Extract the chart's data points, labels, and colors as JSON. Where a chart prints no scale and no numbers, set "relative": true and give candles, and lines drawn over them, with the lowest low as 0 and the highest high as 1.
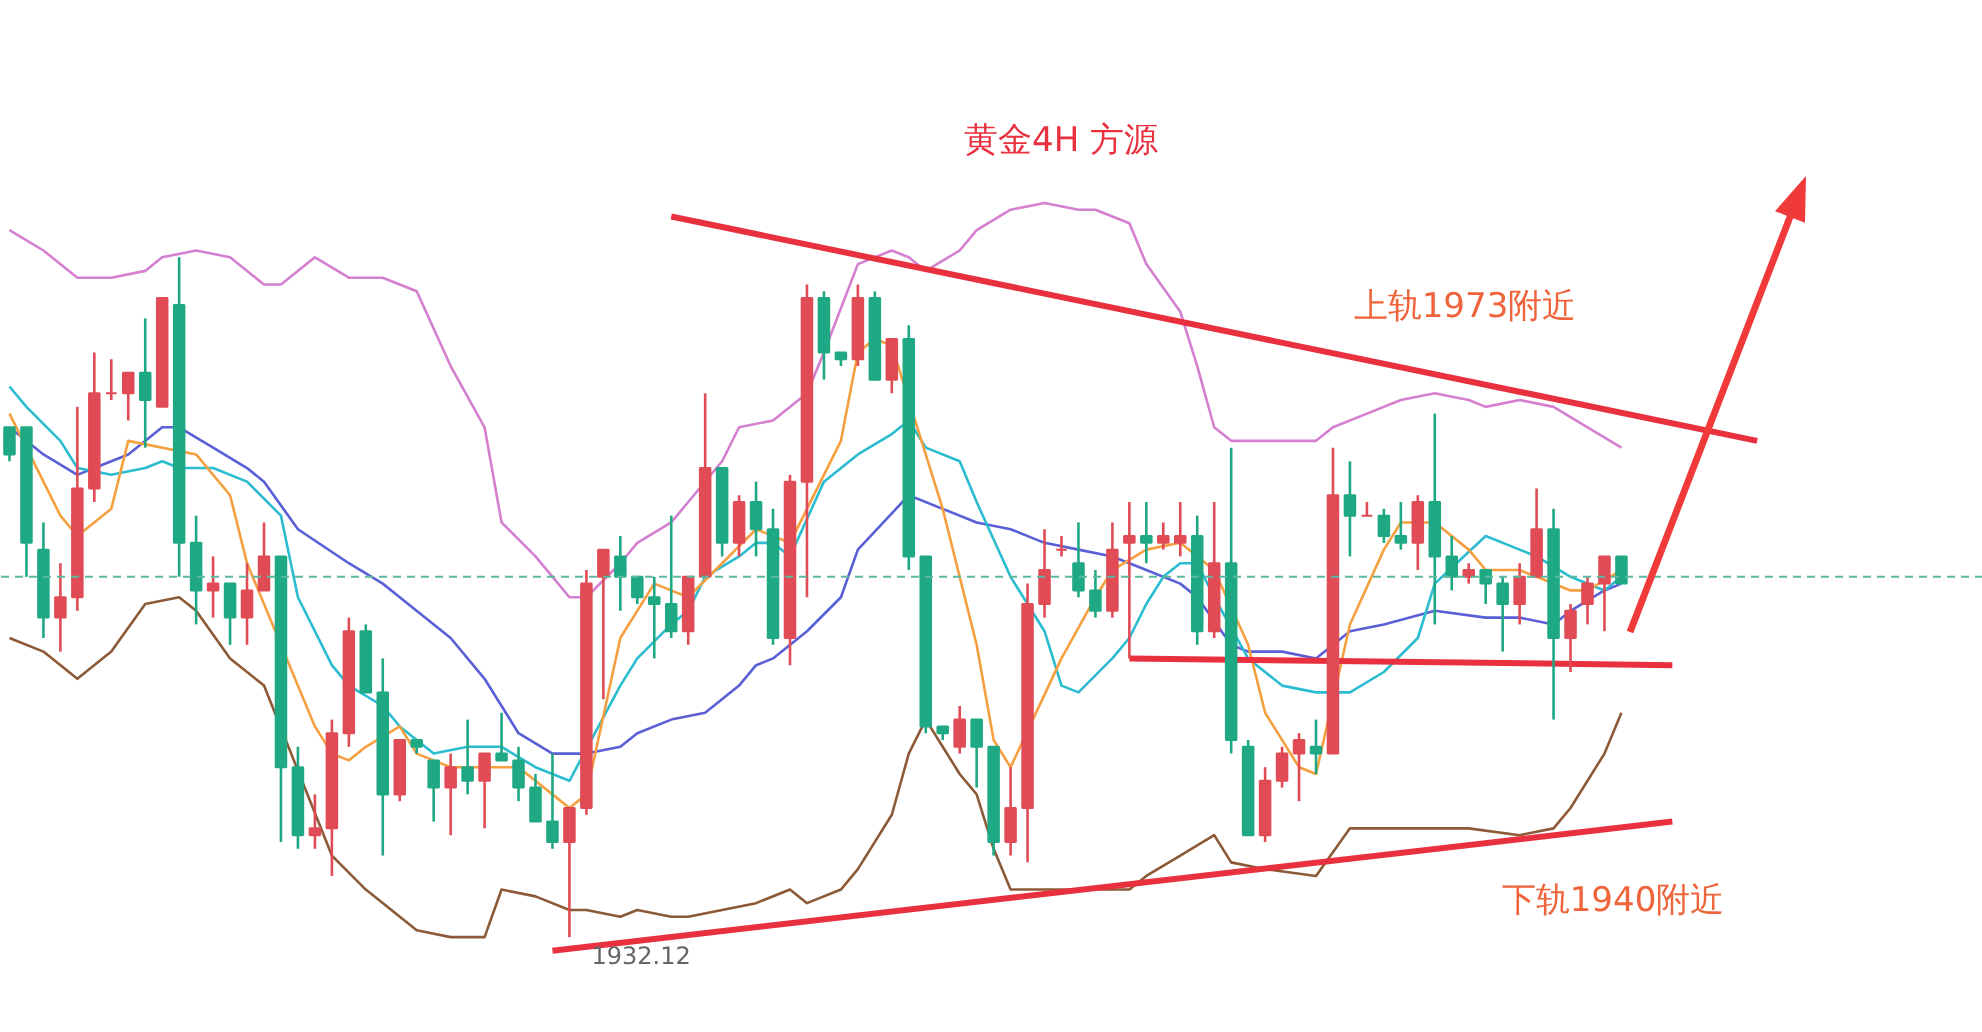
{
  "chart_data": {
    "type": "candlestick",
    "title": "黄金4H 方源",
    "relative": true,
    "categories": [
      null,
      null,
      null,
      null,
      null,
      null,
      null,
      null,
      null,
      null,
      null,
      null,
      null,
      null,
      null,
      null,
      null,
      null,
      null,
      null,
      null,
      null,
      null,
      null,
      null,
      null,
      null,
      null,
      null,
      null,
      null,
      null,
      null,
      null,
      null,
      null,
      null,
      null,
      null,
      null,
      null,
      null,
      null,
      null,
      null,
      null,
      null,
      null,
      null,
      null,
      null,
      null,
      null,
      null,
      null,
      null,
      null,
      null,
      null,
      null,
      null,
      null,
      null,
      null,
      null,
      null,
      null,
      null,
      null,
      null,
      null,
      null,
      null,
      null,
      null,
      null,
      null,
      null,
      null,
      null,
      null,
      null,
      null,
      null,
      null,
      null,
      null,
      null,
      null,
      null,
      null,
      null,
      null,
      null,
      null,
      null,
      null,
      null,
      null,
      null,
      null,
      null,
      null,
      null,
      null,
      null,
      null
    ],
    "ohlc": [
      [
        0.75,
        0.75,
        0.7,
        0.71
      ],
      [
        0.75,
        0.75,
        0.53,
        0.58
      ],
      [
        0.57,
        0.61,
        0.44,
        0.47
      ],
      [
        0.47,
        0.55,
        0.42,
        0.5
      ],
      [
        0.5,
        0.78,
        0.48,
        0.66
      ],
      [
        0.66,
        0.86,
        0.64,
        0.8
      ],
      [
        0.8,
        0.85,
        0.79,
        0.8
      ],
      [
        0.8,
        0.83,
        0.76,
        0.83
      ],
      [
        0.83,
        0.91,
        0.72,
        0.79
      ],
      [
        0.78,
        0.94,
        0.78,
        0.94
      ],
      [
        0.93,
        1.0,
        0.53,
        0.58
      ],
      [
        0.58,
        0.62,
        0.46,
        0.51
      ],
      [
        0.51,
        0.56,
        0.47,
        0.52
      ],
      [
        0.52,
        0.52,
        0.43,
        0.47
      ],
      [
        0.47,
        0.55,
        0.43,
        0.51
      ],
      [
        0.51,
        0.61,
        0.51,
        0.56
      ],
      [
        0.56,
        0.56,
        0.14,
        0.25
      ],
      [
        0.25,
        0.28,
        0.13,
        0.15
      ],
      [
        0.15,
        0.21,
        0.13,
        0.16
      ],
      [
        0.16,
        0.32,
        0.09,
        0.3
      ],
      [
        0.3,
        0.47,
        0.28,
        0.45
      ],
      [
        0.45,
        0.46,
        0.36,
        0.36
      ],
      [
        0.36,
        0.41,
        0.12,
        0.21
      ],
      [
        0.21,
        0.29,
        0.2,
        0.29
      ],
      [
        0.29,
        0.29,
        0.27,
        0.28
      ],
      [
        0.26,
        0.26,
        0.17,
        0.22
      ],
      [
        0.22,
        0.27,
        0.15,
        0.25
      ],
      [
        0.25,
        0.32,
        0.21,
        0.23
      ],
      [
        0.23,
        0.27,
        0.16,
        0.27
      ],
      [
        0.27,
        0.33,
        0.26,
        0.26
      ],
      [
        0.26,
        0.28,
        0.2,
        0.22
      ],
      [
        0.22,
        0.24,
        0.17,
        0.17
      ],
      [
        0.17,
        0.27,
        0.13,
        0.14
      ],
      [
        0.14,
        0.19,
        0.0,
        0.19
      ],
      [
        0.19,
        0.54,
        0.18,
        0.52
      ],
      [
        0.53,
        0.57,
        0.35,
        0.57
      ],
      [
        0.56,
        0.59,
        0.48,
        0.53
      ],
      [
        0.53,
        0.53,
        0.49,
        0.5
      ],
      [
        0.5,
        0.53,
        0.41,
        0.49
      ],
      [
        0.49,
        0.62,
        0.44,
        0.45
      ],
      [
        0.45,
        0.53,
        0.43,
        0.53
      ],
      [
        0.53,
        0.8,
        0.53,
        0.69
      ],
      [
        0.69,
        0.69,
        0.56,
        0.58
      ],
      [
        0.58,
        0.65,
        0.56,
        0.64
      ],
      [
        0.64,
        0.67,
        0.56,
        0.6
      ],
      [
        0.6,
        0.63,
        0.43,
        0.44
      ],
      [
        0.44,
        0.68,
        0.4,
        0.67
      ],
      [
        0.67,
        0.96,
        0.5,
        0.94
      ],
      [
        0.94,
        0.95,
        0.82,
        0.86
      ],
      [
        0.86,
        0.86,
        0.84,
        0.85
      ],
      [
        0.85,
        0.96,
        0.84,
        0.94
      ],
      [
        0.94,
        0.95,
        0.82,
        0.82
      ],
      [
        0.82,
        0.88,
        0.8,
        0.88
      ],
      [
        0.88,
        0.9,
        0.54,
        0.56
      ],
      [
        0.56,
        0.56,
        0.3,
        0.31
      ],
      [
        0.31,
        0.31,
        0.29,
        0.3
      ],
      [
        0.28,
        0.34,
        0.27,
        0.32
      ],
      [
        0.32,
        0.32,
        0.22,
        0.28
      ],
      [
        0.28,
        0.28,
        0.12,
        0.14
      ],
      [
        0.14,
        0.25,
        0.12,
        0.19
      ],
      [
        0.19,
        0.52,
        0.11,
        0.49
      ],
      [
        0.49,
        0.6,
        0.47,
        0.54
      ],
      [
        0.57,
        0.59,
        0.56,
        0.57
      ],
      [
        0.55,
        0.61,
        0.5,
        0.51
      ],
      [
        0.51,
        0.54,
        0.47,
        0.48
      ],
      [
        0.48,
        0.61,
        0.47,
        0.57
      ],
      [
        0.58,
        0.64,
        0.41,
        0.59
      ],
      [
        0.59,
        0.64,
        0.55,
        0.58
      ],
      [
        0.58,
        0.61,
        0.57,
        0.59
      ],
      [
        0.58,
        0.64,
        0.56,
        0.59
      ],
      [
        0.59,
        0.62,
        0.43,
        0.45
      ],
      [
        0.45,
        0.64,
        0.44,
        0.55
      ],
      [
        0.55,
        0.72,
        0.27,
        0.29
      ],
      [
        0.28,
        0.29,
        0.15,
        0.15
      ],
      [
        0.15,
        0.25,
        0.14,
        0.23
      ],
      [
        0.23,
        0.28,
        0.22,
        0.27
      ],
      [
        0.27,
        0.3,
        0.2,
        0.29
      ],
      [
        0.28,
        0.32,
        0.24,
        0.27
      ],
      [
        0.27,
        0.72,
        0.27,
        0.65
      ],
      [
        0.65,
        0.7,
        0.56,
        0.62
      ],
      [
        0.62,
        0.64,
        0.62,
        0.62
      ],
      [
        0.62,
        0.63,
        0.58,
        0.59
      ],
      [
        0.59,
        0.64,
        0.57,
        0.58
      ],
      [
        0.58,
        0.65,
        0.54,
        0.64
      ],
      [
        0.64,
        0.77,
        0.46,
        0.56
      ],
      [
        0.56,
        0.59,
        0.51,
        0.53
      ],
      [
        0.53,
        0.55,
        0.52,
        0.54
      ],
      [
        0.54,
        0.54,
        0.49,
        0.52
      ],
      [
        0.52,
        0.53,
        0.42,
        0.49
      ],
      [
        0.49,
        0.55,
        0.46,
        0.53
      ],
      [
        0.53,
        0.66,
        0.53,
        0.6
      ],
      [
        0.6,
        0.63,
        0.32,
        0.44
      ],
      [
        0.44,
        0.49,
        0.39,
        0.48
      ],
      [
        0.49,
        0.53,
        0.46,
        0.52
      ],
      [
        0.52,
        0.56,
        0.45,
        0.56
      ],
      [
        0.56,
        0.56,
        0.52,
        0.52
      ],
      null,
      null,
      null,
      null,
      null,
      null,
      null,
      null,
      null,
      null,
      null
    ],
    "colors": [
      "#1fa884",
      "#1fa884",
      "#1fa884",
      "#e04b55",
      "#e04b55",
      "#e04b55",
      "#e04b55",
      "#e04b55",
      "#1fa884",
      "#e04b55",
      "#1fa884",
      "#1fa884",
      "#e04b55",
      "#1fa884",
      "#e04b55",
      "#e04b55",
      "#1fa884",
      "#1fa884",
      "#e04b55",
      "#e04b55",
      "#e04b55",
      "#1fa884",
      "#1fa884",
      "#e04b55",
      "#1fa884",
      "#1fa884",
      "#e04b55",
      "#1fa884",
      "#e04b55",
      "#1fa884",
      "#1fa884",
      "#1fa884",
      "#1fa884",
      "#e04b55",
      "#e04b55",
      "#e04b55",
      "#1fa884",
      "#1fa884",
      "#1fa884",
      "#1fa884",
      "#e04b55",
      "#e04b55",
      "#1fa884",
      "#e04b55",
      "#1fa884",
      "#1fa884",
      "#e04b55",
      "#e04b55",
      "#1fa884",
      "#1fa884",
      "#e04b55",
      "#1fa884",
      "#e04b55",
      "#1fa884",
      "#1fa884",
      "#1fa884",
      "#e04b55",
      "#1fa884",
      "#1fa884",
      "#e04b55",
      "#e04b55",
      "#e04b55",
      "#e04b55",
      "#1fa884",
      "#1fa884",
      "#e04b55",
      "#e04b55",
      "#1fa884",
      "#e04b55",
      "#e04b55",
      "#1fa884",
      "#e04b55",
      "#1fa884",
      "#1fa884",
      "#e04b55",
      "#e04b55",
      "#e04b55",
      "#1fa884",
      "#e04b55",
      "#1fa884",
      "#e04b55",
      "#1fa884",
      "#1fa884",
      "#e04b55",
      "#1fa884",
      "#1fa884",
      "#e04b55",
      "#1fa884",
      "#1fa884",
      "#e04b55",
      "#e04b55",
      "#1fa884",
      "#e04b55",
      "#e04b55",
      "#e04b55",
      "#1fa884",
      null,
      null,
      null,
      null,
      null,
      null,
      null,
      null,
      null,
      null,
      null
    ],
    "series": [
      {
        "type": "line",
        "color": "#d47fd0",
        "values": [
          1.04,
          null,
          1.01,
          null,
          0.97,
          null,
          0.97,
          null,
          0.98,
          1.0,
          null,
          1.01,
          null,
          1.0,
          null,
          0.96,
          0.96,
          null,
          1.0,
          null,
          0.97,
          null,
          0.97,
          null,
          0.95,
          null,
          0.84,
          null,
          0.75,
          0.61,
          null,
          0.56,
          null,
          0.5,
          0.5,
          null,
          0.55,
          0.58,
          null,
          0.61,
          0.64,
          null,
          0.7,
          0.75,
          null,
          0.76,
          null,
          0.8,
          0.86,
          null,
          0.99,
          null,
          1.01,
          1.0,
          0.98,
          null,
          1.01,
          1.04,
          null,
          1.07,
          null,
          1.08,
          null,
          1.07,
          1.07,
          null,
          1.05,
          0.99,
          null,
          0.92,
          0.84,
          0.75,
          0.73,
          null,
          0.73,
          null,
          null,
          0.73,
          0.75,
          null,
          0.77,
          null,
          0.79,
          null,
          0.8,
          null,
          0.79,
          0.78,
          null,
          0.79,
          null,
          0.78,
          null,
          0.75,
          null,
          0.72,
          null,
          null,
          null,
          null,
          null,
          null,
          null,
          null,
          null,
          null,
          null
        ]
      },
      {
        "type": "line",
        "color": "#5a5fd6",
        "values": [
          0.75,
          null,
          0.71,
          null,
          0.68,
          0.69,
          null,
          0.71,
          null,
          0.75,
          0.75,
          null,
          0.72,
          null,
          0.69,
          0.67,
          null,
          0.6,
          null,
          null,
          0.55,
          null,
          0.52,
          0.5,
          null,
          null,
          0.44,
          null,
          0.38,
          null,
          0.3,
          null,
          0.27,
          null,
          0.27,
          null,
          0.28,
          0.3,
          null,
          0.32,
          null,
          0.33,
          null,
          0.37,
          0.4,
          0.41,
          null,
          0.45,
          null,
          0.5,
          0.57,
          null,
          null,
          0.65,
          null,
          0.63,
          null,
          0.61,
          null,
          0.6,
          null,
          0.58,
          null,
          0.57,
          null,
          0.56,
          null,
          0.54,
          null,
          0.52,
          0.5,
          null,
          0.43,
          0.42,
          null,
          0.42,
          null,
          0.41,
          null,
          0.45,
          null,
          0.46,
          null,
          null,
          0.48,
          null,
          null,
          0.47,
          null,
          0.47,
          null,
          0.46,
          0.48,
          null,
          0.51,
          0.52,
          null,
          null,
          null,
          null,
          null,
          null,
          null,
          null,
          null,
          null,
          null
        ]
      },
      {
        "type": "line",
        "color": "#8c5a36",
        "values": [
          0.44,
          null,
          0.42,
          null,
          0.38,
          null,
          0.42,
          null,
          0.49,
          null,
          0.5,
          0.48,
          null,
          0.41,
          null,
          0.37,
          null,
          null,
          null,
          0.12,
          null,
          0.07,
          null,
          null,
          0.01,
          null,
          0.0,
          null,
          0.0,
          0.07,
          null,
          0.06,
          null,
          0.04,
          0.04,
          null,
          0.03,
          0.04,
          null,
          0.03,
          0.03,
          null,
          0.04,
          null,
          0.05,
          null,
          0.07,
          0.05,
          null,
          0.07,
          0.1,
          null,
          0.18,
          0.27,
          0.32,
          0.28,
          0.24,
          0.21,
          0.13,
          0.07,
          null,
          0.07,
          null,
          0.07,
          null,
          null,
          0.07,
          0.09,
          null,
          0.12,
          null,
          0.15,
          0.11,
          null,
          0.1,
          null,
          null,
          0.09,
          null,
          0.16,
          null,
          null,
          0.16,
          null,
          null,
          null,
          0.16,
          null,
          null,
          0.15,
          null,
          0.16,
          0.19,
          null,
          0.27,
          0.33,
          null,
          null,
          null,
          null,
          null,
          null,
          null,
          null,
          null,
          null,
          null
        ]
      },
      {
        "type": "line",
        "color": "#2bbcd0",
        "values": [
          0.81,
          0.78,
          null,
          0.73,
          0.69,
          null,
          0.68,
          null,
          0.69,
          0.7,
          0.69,
          null,
          0.69,
          null,
          0.67,
          null,
          0.62,
          0.5,
          null,
          0.4,
          0.37,
          null,
          0.34,
          0.31,
          null,
          0.27,
          null,
          0.28,
          null,
          0.28,
          null,
          0.25,
          null,
          0.23,
          null,
          null,
          0.37,
          0.41,
          null,
          0.46,
          0.48,
          0.53,
          null,
          0.56,
          0.58,
          0.58,
          0.56,
          null,
          0.67,
          null,
          0.71,
          null,
          0.74,
          0.76,
          0.72,
          null,
          0.7,
          0.64,
          null,
          0.53,
          null,
          0.45,
          0.37,
          0.36,
          null,
          0.41,
          0.44,
          0.49,
          0.53,
          0.55,
          0.55,
          0.5,
          null,
          0.41,
          null,
          0.37,
          null,
          0.36,
          null,
          0.36,
          null,
          0.39,
          null,
          0.44,
          0.52,
          null,
          null,
          0.59,
          null,
          0.57,
          0.56,
          null,
          0.53,
          null,
          0.51,
          0.53,
          null,
          null,
          null,
          null,
          null,
          null,
          null,
          null,
          null,
          null,
          null
        ]
      },
      {
        "type": "line",
        "color": "#f5a040",
        "values": [
          0.77,
          null,
          null,
          0.62,
          0.59,
          null,
          0.63,
          0.73,
          null,
          null,
          null,
          0.71,
          null,
          0.65,
          0.55,
          null,
          null,
          null,
          0.31,
          0.27,
          0.26,
          0.28,
          null,
          0.31,
          0.27,
          null,
          0.25,
          null,
          0.25,
          null,
          0.25,
          null,
          0.21,
          0.19,
          0.21,
          null,
          0.44,
          null,
          0.52,
          null,
          0.5,
          null,
          0.55,
          null,
          0.6,
          null,
          0.58,
          0.63,
          null,
          0.73,
          0.86,
          0.88,
          0.87,
          null,
          null,
          0.63,
          null,
          0.43,
          0.29,
          0.25,
          null,
          null,
          0.41,
          null,
          0.5,
          0.54,
          null,
          0.57,
          null,
          0.58,
          null,
          0.54,
          null,
          0.43,
          0.33,
          null,
          0.25,
          0.24,
          null,
          0.46,
          null,
          0.57,
          0.61,
          null,
          0.61,
          null,
          0.57,
          0.54,
          null,
          0.54,
          0.53,
          null,
          0.51,
          0.51,
          null,
          0.54,
          null,
          null,
          null,
          null,
          null,
          null,
          null,
          null,
          null,
          null,
          null
        ]
      },
      {
        "type": "line",
        "color": "#e8303e",
        "values": [
          null,
          null,
          null,
          null,
          null,
          null,
          null,
          null,
          null,
          null,
          null,
          null,
          null,
          null,
          null,
          null,
          null,
          null,
          null,
          null,
          null,
          null,
          null,
          null,
          null,
          null,
          null,
          null,
          null,
          null,
          null,
          null,
          null,
          null,
          null,
          null,
          null,
          null,
          null,
          1.06,
          null,
          null,
          null,
          null,
          null,
          null,
          null,
          null,
          null,
          null,
          null,
          null,
          null,
          null,
          null,
          null,
          null,
          null,
          null,
          null,
          null,
          null,
          null,
          null,
          null,
          null,
          null,
          null,
          null,
          null,
          null,
          null,
          null,
          null,
          null,
          null,
          null,
          null,
          null,
          null,
          null,
          null,
          null,
          null,
          null,
          null,
          null,
          null,
          null,
          null,
          null,
          null,
          null,
          null,
          null,
          null,
          null,
          null,
          null,
          null,
          null,
          null,
          null,
          0.73,
          null,
          null,
          null
        ]
      },
      {
        "type": "line",
        "color": "#e8303e",
        "values": [
          null,
          null,
          null,
          null,
          null,
          null,
          null,
          null,
          null,
          null,
          null,
          null,
          null,
          null,
          null,
          null,
          null,
          null,
          null,
          null,
          null,
          null,
          null,
          null,
          null,
          null,
          null,
          null,
          null,
          null,
          null,
          null,
          -0.02,
          null,
          null,
          null,
          null,
          null,
          null,
          null,
          null,
          null,
          null,
          null,
          null,
          null,
          null,
          null,
          null,
          null,
          null,
          null,
          null,
          null,
          null,
          null,
          null,
          null,
          null,
          null,
          null,
          null,
          null,
          null,
          null,
          null,
          null,
          null,
          null,
          null,
          null,
          null,
          null,
          null,
          null,
          null,
          null,
          null,
          null,
          null,
          null,
          null,
          null,
          null,
          null,
          null,
          null,
          null,
          null,
          null,
          null,
          null,
          null,
          null,
          null,
          null,
          null,
          null,
          0.17,
          null,
          null,
          null,
          null,
          null,
          null,
          null,
          null
        ]
      },
      {
        "type": "line",
        "color": "#e8303e",
        "values": [
          null,
          null,
          null,
          null,
          null,
          null,
          null,
          null,
          null,
          null,
          null,
          null,
          null,
          null,
          null,
          null,
          null,
          null,
          null,
          null,
          null,
          null,
          null,
          null,
          null,
          null,
          null,
          null,
          null,
          null,
          null,
          null,
          null,
          null,
          null,
          null,
          null,
          null,
          null,
          null,
          null,
          null,
          null,
          null,
          null,
          null,
          null,
          null,
          null,
          null,
          null,
          null,
          null,
          null,
          null,
          null,
          null,
          null,
          null,
          null,
          null,
          null,
          null,
          null,
          null,
          null,
          0.41,
          null,
          null,
          null,
          null,
          null,
          null,
          null,
          null,
          null,
          null,
          null,
          null,
          null,
          null,
          null,
          null,
          null,
          null,
          null,
          null,
          null,
          null,
          null,
          null,
          null,
          null,
          null,
          null,
          null,
          null,
          null,
          0.4,
          null,
          null,
          null,
          null,
          null,
          null,
          null,
          null
        ]
      }
    ],
    "ref_lines": [
      {
        "axis": "y",
        "value": 0.53,
        "color": "#5cb8a0",
        "line_style": "dashed"
      }
    ],
    "annotations": [
      "上轨1973附近",
      "下轨1940附近",
      {
        "text": "1932.12",
        "y": 0.0
      }
    ]
  }
}
